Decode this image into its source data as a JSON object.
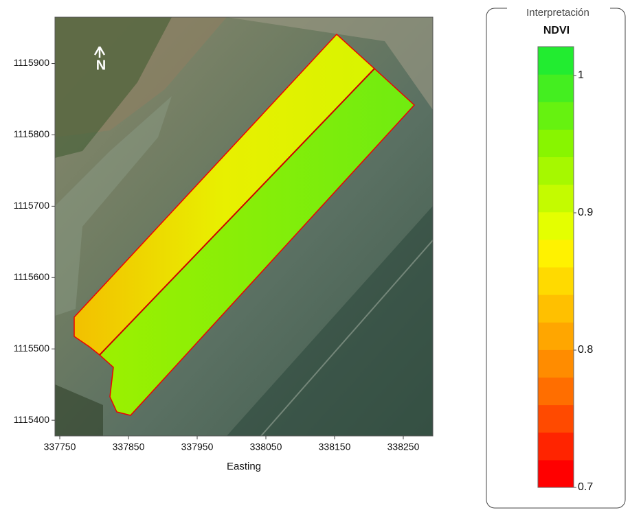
{
  "map": {
    "xlabel": "Easting",
    "north_label": "N",
    "xlim": [
      337743,
      338293
    ],
    "ylim": [
      1115378,
      1115965
    ],
    "xticks": [
      337750,
      337850,
      337950,
      338050,
      338150,
      338250
    ],
    "yticks": [
      1115400,
      1115500,
      1115600,
      1115700,
      1115800,
      1115900
    ]
  },
  "legend": {
    "title": "Interpretación",
    "subtitle": "NDVI",
    "range": [
      0.7,
      1.021
    ],
    "ticks": [
      0.7,
      0.8,
      0.9,
      1
    ],
    "colors": [
      "#ff0000",
      "#ff2400",
      "#ff4a00",
      "#ff6e00",
      "#ff8c00",
      "#ffa600",
      "#ffc000",
      "#ffda00",
      "#fff200",
      "#e4ff00",
      "#c4fb00",
      "#a6f800",
      "#88f500",
      "#66f210",
      "#44ee20",
      "#22ec30"
    ]
  }
}
